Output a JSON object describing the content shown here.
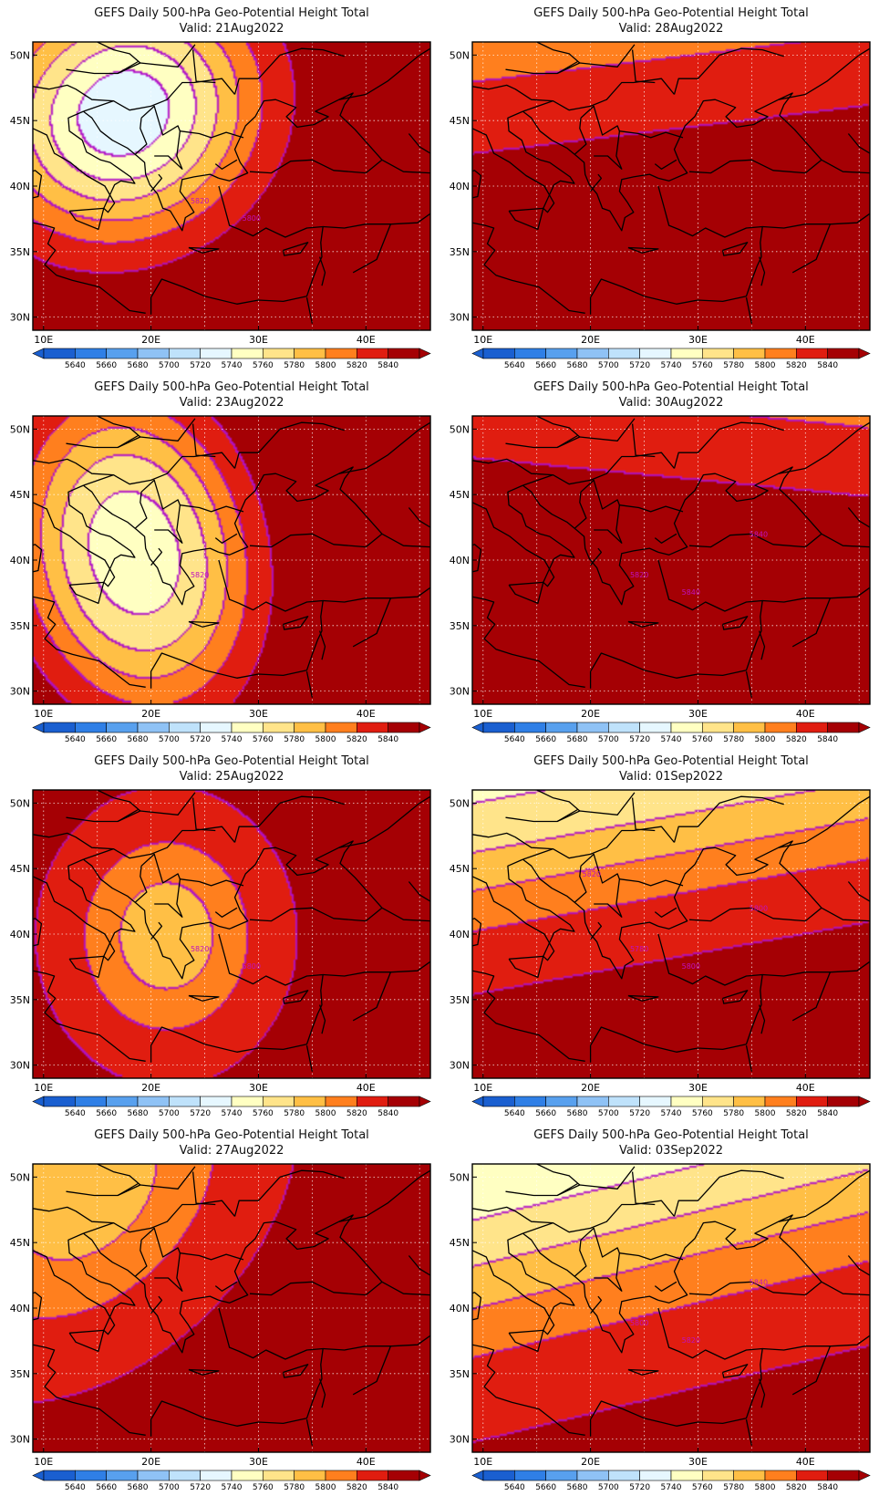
{
  "title_line1": "GEFS Daily 500-hPa Geo-Potential Height Total",
  "palette": {
    "5630": "#1a5fd0",
    "5650": "#2f7fe6",
    "5670": "#58a0ee",
    "5690": "#8fc2f5",
    "5710": "#bfe2fb",
    "5730": "#e6f7ff",
    "5750": "#ffffc2",
    "5770": "#ffe48a",
    "5790": "#ffbf45",
    "5810": "#ff7f1e",
    "5830": "#e01d10",
    "5850": "#a50004"
  },
  "contour_color": "#b010c8",
  "colorbar": {
    "bins": [
      5630,
      5650,
      5670,
      5690,
      5710,
      5730,
      5750,
      5770,
      5790,
      5810,
      5830,
      5850
    ],
    "labels": [
      "5640",
      "5660",
      "5680",
      "5700",
      "5720",
      "5740",
      "5760",
      "5780",
      "5800",
      "5820",
      "5840"
    ]
  },
  "lon_ticks": [
    "10E",
    "20E",
    "30E",
    "40E"
  ],
  "lat_ticks": [
    "50N",
    "45N",
    "40N",
    "35N",
    "30N"
  ],
  "panels": [
    {
      "valid": "Valid: 21Aug2022",
      "contour_labels": [
        "5820",
        "5800"
      ],
      "pattern": {
        "type": "trough",
        "lon": 17.5,
        "lat": 45.5,
        "val": 5727,
        "ax": 12,
        "ay": 9,
        "rot": -10,
        "bg": 5860,
        "sharp": 2.2
      }
    },
    {
      "valid": "Valid: 28Aug2022",
      "contour_labels": [],
      "pattern": {
        "type": "zonal",
        "north": 5817,
        "south": 5860,
        "lat0": 44.5,
        "tilt": 0.1,
        "w": 2.0
      }
    },
    {
      "valid": "Valid: 23Aug2022",
      "contour_labels": [
        "5820"
      ],
      "pattern": {
        "type": "trough",
        "lon": 18.5,
        "lat": 40.5,
        "val": 5750,
        "ax": 10,
        "ay": 12,
        "rot": -28,
        "bg": 5860,
        "sharp": 2.6
      }
    },
    {
      "valid": "Valid: 30Aug2022",
      "contour_labels": [
        "5820",
        "5840",
        "5840"
      ],
      "pattern": {
        "type": "zonal",
        "north": 5818,
        "south": 5850,
        "lat0": 47.5,
        "tilt": -0.08,
        "w": 1.5
      }
    },
    {
      "valid": "Valid: 25Aug2022",
      "contour_labels": [
        "5820",
        "5800"
      ],
      "pattern": {
        "type": "trough",
        "lon": 21.5,
        "lat": 39.8,
        "val": 5786,
        "ax": 8.5,
        "ay": 8,
        "rot": 0,
        "bg": 5848,
        "sharp": 2.0
      }
    },
    {
      "valid": "Valid: 01Sep2022",
      "contour_labels": [
        "5780",
        "5800",
        "5800",
        "5820"
      ],
      "pattern": {
        "type": "zonal",
        "north": 5740,
        "south": 5852,
        "lat0": 46.5,
        "tilt": 0.15,
        "w": 4.0
      }
    },
    {
      "valid": "Valid: 27Aug2022",
      "contour_labels": [],
      "pattern": {
        "type": "trough",
        "lon": 14,
        "lat": 49,
        "val": 5782,
        "ax": 15,
        "ay": 10,
        "rot": -30,
        "bg": 5852,
        "sharp": 1.6
      }
    },
    {
      "valid": "Valid: 03Sep2022",
      "contour_labels": [
        "5800",
        "5820",
        "5840"
      ],
      "pattern": {
        "type": "zonal",
        "north": 5725,
        "south": 5850,
        "lat0": 45.5,
        "tilt": 0.2,
        "w": 5.0
      }
    }
  ]
}
